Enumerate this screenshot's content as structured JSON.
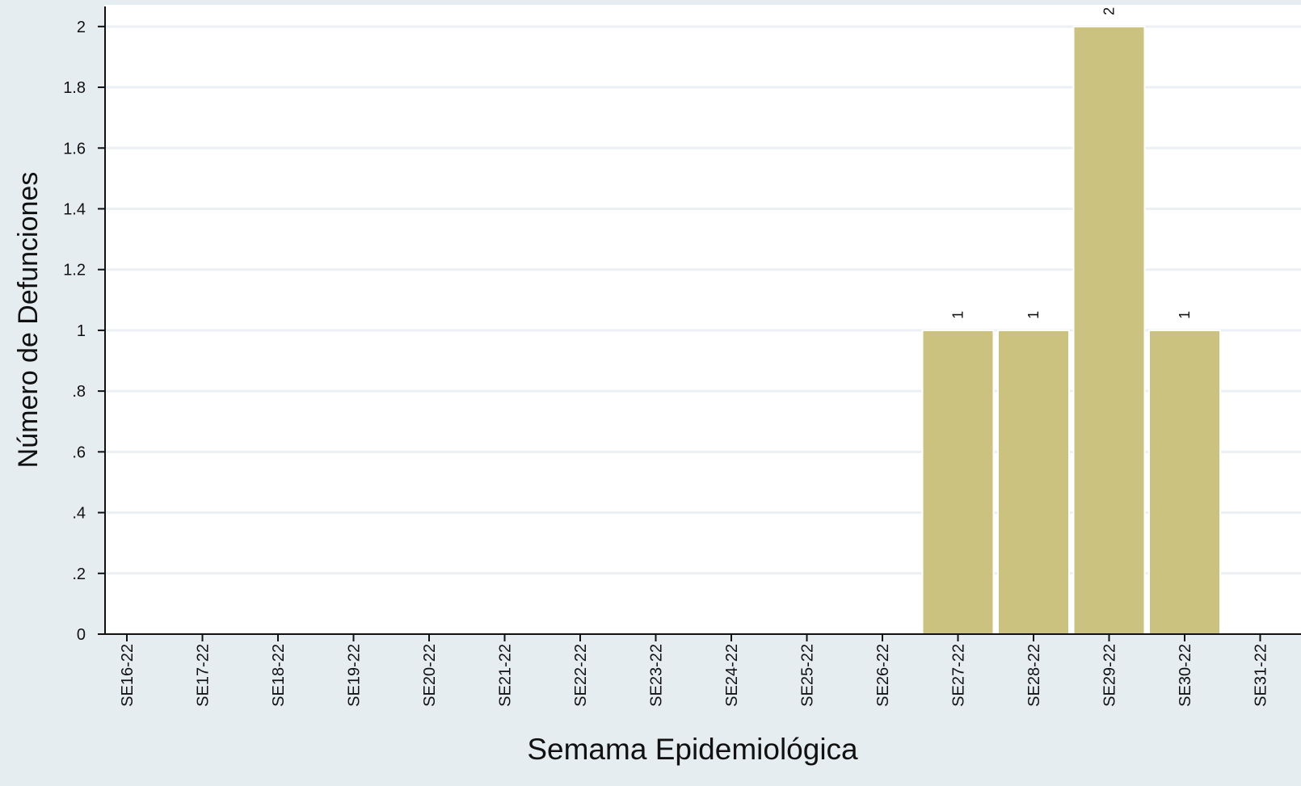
{
  "chart_data": {
    "type": "bar",
    "x_label": "Semama Epidemiológica",
    "y_label": "Número de Defunciones",
    "categories": [
      "SE16-22",
      "SE17-22",
      "SE18-22",
      "SE19-22",
      "SE20-22",
      "SE21-22",
      "SE22-22",
      "SE23-22",
      "SE24-22",
      "SE25-22",
      "SE26-22",
      "SE27-22",
      "SE28-22",
      "SE29-22",
      "SE30-22",
      "SE31-22"
    ],
    "values": [
      0,
      0,
      0,
      0,
      0,
      0,
      0,
      0,
      0,
      0,
      0,
      1,
      1,
      2,
      1,
      0
    ],
    "color": "#ccc27f",
    "ylim": [
      0,
      2.066
    ],
    "yticks": [
      0,
      {
        "value": 0.2,
        "label": ".2"
      },
      {
        "value": 0.4,
        "label": ".4"
      },
      {
        "value": 0.6,
        "label": ".6"
      },
      {
        "value": 0.8,
        "label": ".8"
      },
      1,
      1.2,
      1.4,
      1.6,
      1.8,
      2
    ],
    "grid": true
  }
}
